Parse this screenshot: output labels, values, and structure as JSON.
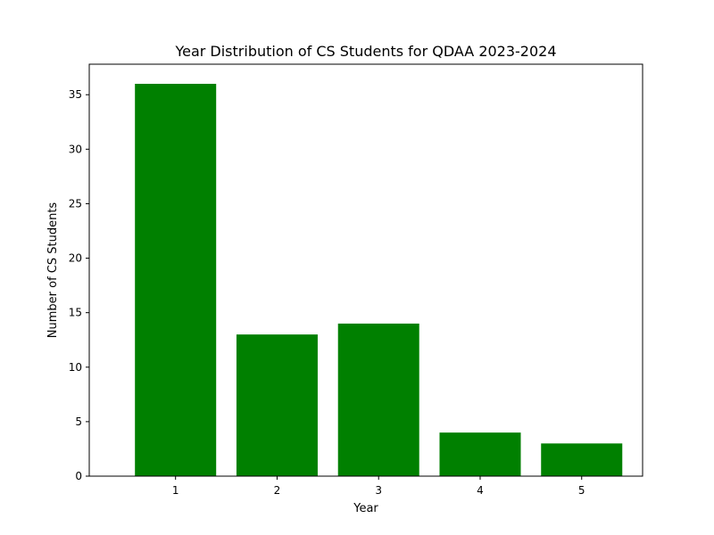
{
  "chart_data": {
    "type": "bar",
    "title": "Year Distribution of CS Students for QDAA 2023-2024",
    "xlabel": "Year",
    "ylabel": "Number of CS Students",
    "categories": [
      "1",
      "2",
      "3",
      "4",
      "5"
    ],
    "values": [
      36,
      13,
      14,
      4,
      3
    ],
    "ylim": [
      0,
      37.8
    ],
    "yticks": [
      0,
      5,
      10,
      15,
      20,
      25,
      30,
      35
    ],
    "bar_color": "#008000",
    "grid": false,
    "legend": "none"
  }
}
